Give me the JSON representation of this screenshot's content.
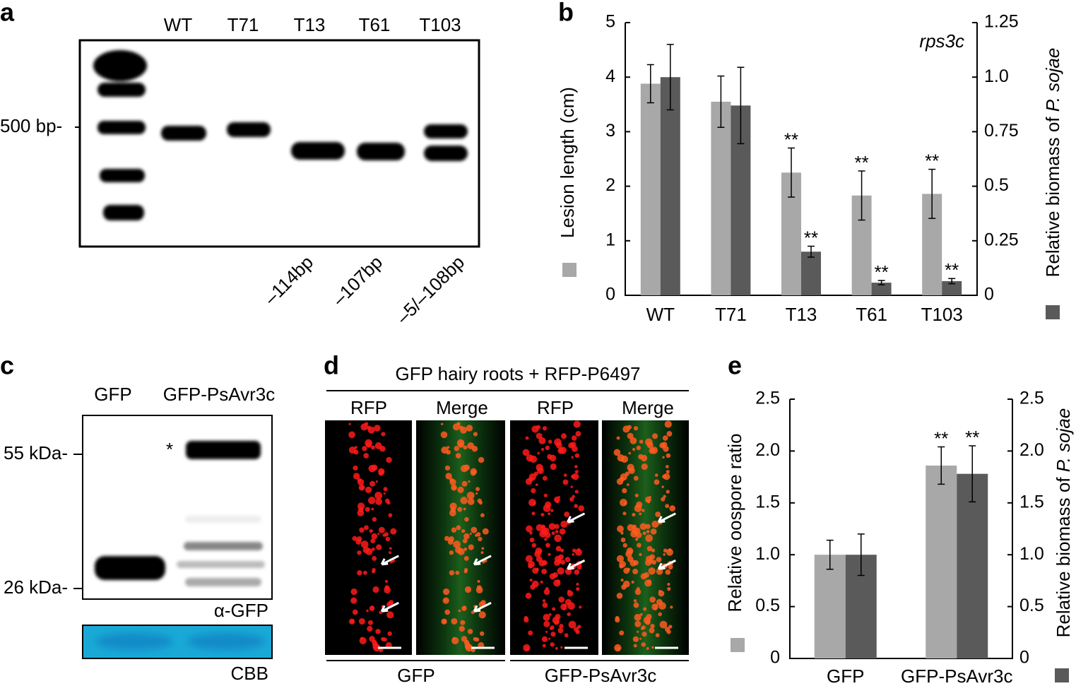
{
  "panel_letters": [
    "a",
    "b",
    "c",
    "d",
    "e"
  ],
  "gel_a": {
    "lanes": [
      "WT",
      "T71",
      "T13",
      "T61",
      "T103"
    ],
    "marker": "500 bp-",
    "deletions": [
      "–114bp",
      "–107bp",
      "–5/–108bp"
    ]
  },
  "blot_c": {
    "lanes": [
      "GFP",
      "GFP-PsAvr3c"
    ],
    "markers": [
      "55 kDa-",
      "26 kDa-"
    ],
    "star": "*",
    "antibody": "α-GFP",
    "loading": "CBB"
  },
  "images_d": {
    "title": "GFP hairy roots + RFP-P6497",
    "columns": [
      "RFP",
      "Merge",
      "RFP",
      "Merge"
    ],
    "groups": [
      "GFP",
      "GFP-PsAvr3c"
    ]
  },
  "chart_data": [
    {
      "type": "bar",
      "inset_label": "rps3c",
      "categories": [
        "WT",
        "T71",
        "T13",
        "T61",
        "T103"
      ],
      "ylabel": "Lesion length (cm)",
      "y2label": [
        "Relative biomass of ",
        "P. sojae"
      ],
      "ylim": [
        0,
        5
      ],
      "yticks": [
        0,
        1,
        2,
        3,
        4,
        5
      ],
      "y2lim": [
        0,
        1.25
      ],
      "y2ticks": [
        0,
        0.25,
        0.5,
        0.75,
        {
          "value": 1,
          "label": "1.0"
        },
        1.25
      ],
      "series": [
        {
          "color": "#a8a8a8",
          "values": [
            3.88,
            3.55,
            2.25,
            1.83,
            1.86
          ],
          "errors": [
            0.35,
            0.47,
            0.45,
            0.45,
            0.45
          ],
          "marks": [
            null,
            null,
            "**",
            "**",
            "**"
          ]
        },
        {
          "color": "#5a5a5a",
          "axis": "y2",
          "values": [
            1.0,
            0.87,
            0.2,
            0.058,
            0.065
          ],
          "errors": [
            0.15,
            0.175,
            0.025,
            0.01,
            0.012
          ],
          "marks": [
            null,
            null,
            "**",
            "**",
            "**"
          ]
        }
      ]
    },
    {
      "type": "bar",
      "categories": [
        "GFP",
        "GFP-PsAvr3c"
      ],
      "ylabel": "Relative oospore ratio",
      "y2label": [
        "Relative biomass of ",
        "P. sojae"
      ],
      "ylim": [
        0,
        2.5
      ],
      "yticks": [
        0,
        0.5,
        {
          "value": 1,
          "label": "1.0"
        },
        1.5,
        {
          "value": 2,
          "label": "2.0"
        },
        2.5
      ],
      "y2lim": [
        0,
        2.5
      ],
      "y2ticks": [
        0,
        0.5,
        {
          "value": 1,
          "label": "1.0"
        },
        1.5,
        {
          "value": 2,
          "label": "2.0"
        },
        2.5
      ],
      "series": [
        {
          "color": "#a8a8a8",
          "values": [
            1.0,
            1.86
          ],
          "errors": [
            0.14,
            0.18
          ],
          "marks": [
            null,
            "**"
          ]
        },
        {
          "color": "#5a5a5a",
          "axis": "y2",
          "values": [
            1.0,
            1.78
          ],
          "errors": [
            0.2,
            0.27
          ],
          "marks": [
            null,
            "**"
          ]
        }
      ]
    }
  ]
}
